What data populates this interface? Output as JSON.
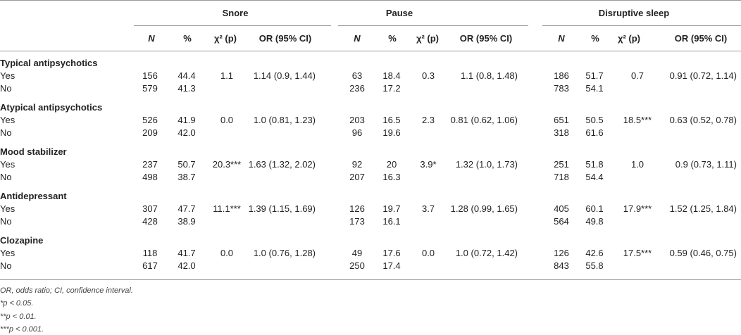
{
  "columns": {
    "groups": [
      "Snore",
      "Pause",
      "Disruptive sleep"
    ],
    "subheaders": [
      "N",
      "%",
      "χ² (p)",
      "OR (95% CI)"
    ]
  },
  "sections": [
    {
      "title": "Typical antipsychotics",
      "rows": [
        {
          "label": "Yes",
          "cells": [
            [
              "156",
              "44.4",
              "1.1",
              "1.14 (0.9, 1.44)"
            ],
            [
              "63",
              "18.4",
              "0.3",
              "1.1 (0.8, 1.48)"
            ],
            [
              "186",
              "51.7",
              "0.7",
              "0.91 (0.72, 1.14)"
            ]
          ]
        },
        {
          "label": "No",
          "cells": [
            [
              "579",
              "41.3"
            ],
            [
              "236",
              "17.2"
            ],
            [
              "783",
              "54.1"
            ]
          ]
        }
      ]
    },
    {
      "title": "Atypical antipsychotics",
      "rows": [
        {
          "label": "Yes",
          "cells": [
            [
              "526",
              "41.9",
              "0.0",
              "1.0 (0.81, 1.23)"
            ],
            [
              "203",
              "16.5",
              "2.3",
              "0.81 (0.62, 1.06)"
            ],
            [
              "651",
              "50.5",
              "18.5***",
              "0.63 (0.52, 0.78)"
            ]
          ]
        },
        {
          "label": "No",
          "cells": [
            [
              "209",
              "42.0"
            ],
            [
              "96",
              "19.6"
            ],
            [
              "318",
              "61.6"
            ]
          ]
        }
      ]
    },
    {
      "title": "Mood stabilizer",
      "rows": [
        {
          "label": "Yes",
          "cells": [
            [
              "237",
              "50.7",
              "20.3***",
              "1.63 (1.32, 2.02)"
            ],
            [
              "92",
              "20",
              "3.9*",
              "1.32 (1.0, 1.73)"
            ],
            [
              "251",
              "51.8",
              "1.0",
              "0.9 (0.73, 1.11)"
            ]
          ]
        },
        {
          "label": "No",
          "cells": [
            [
              "498",
              "38.7"
            ],
            [
              "207",
              "16.3"
            ],
            [
              "718",
              "54.4"
            ]
          ]
        }
      ]
    },
    {
      "title": "Antidepressant",
      "rows": [
        {
          "label": "Yes",
          "cells": [
            [
              "307",
              "47.7",
              "11.1***",
              "1.39 (1.15, 1.69)"
            ],
            [
              "126",
              "19.7",
              "3.7",
              "1.28 (0.99, 1.65)"
            ],
            [
              "405",
              "60.1",
              "17.9***",
              "1.52 (1.25, 1.84)"
            ]
          ]
        },
        {
          "label": "No",
          "cells": [
            [
              "428",
              "38.9"
            ],
            [
              "173",
              "16.1"
            ],
            [
              "564",
              "49.8"
            ]
          ]
        }
      ]
    },
    {
      "title": "Clozapine",
      "rows": [
        {
          "label": "Yes",
          "cells": [
            [
              "118",
              "41.7",
              "0.0",
              "1.0 (0.76, 1.28)"
            ],
            [
              "49",
              "17.6",
              "0.0",
              "1.0 (0.72, 1.42)"
            ],
            [
              "126",
              "42.6",
              "17.5***",
              "0.59 (0.46, 0.75)"
            ]
          ]
        },
        {
          "label": "No",
          "cells": [
            [
              "617",
              "42.0"
            ],
            [
              "250",
              "17.4"
            ],
            [
              "843",
              "55.8"
            ]
          ]
        }
      ]
    }
  ],
  "footnotes": [
    "OR, odds ratio; CI, confidence interval.",
    "*p < 0.05.",
    "**p < 0.01.",
    "***p < 0.001."
  ]
}
